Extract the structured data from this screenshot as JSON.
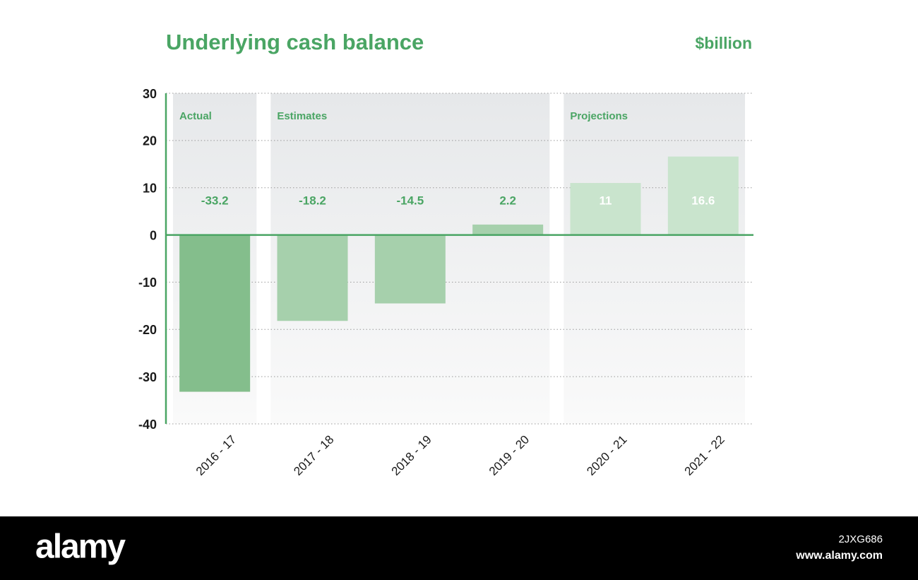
{
  "chart_data": {
    "type": "bar",
    "title": "Underlying cash balance",
    "unit": "$billion",
    "categories": [
      "2016 - 17",
      "2017 - 18",
      "2018 - 19",
      "2019 - 20",
      "2020 - 21",
      "2021 - 22"
    ],
    "values": [
      -33.2,
      -18.2,
      -14.5,
      2.2,
      11,
      16.6
    ],
    "colors": [
      "#84be8c",
      "#a6d0ac",
      "#a6d0ac",
      "#a6d0ac",
      "#c9e4cd",
      "#c9e4cd"
    ],
    "label_colors": [
      "#4aa564",
      "#4aa564",
      "#4aa564",
      "#4aa564",
      "#ffffff",
      "#ffffff"
    ],
    "groups": [
      {
        "name": "Actual",
        "categories": [
          "2016 - 17"
        ]
      },
      {
        "name": "Estimates",
        "categories": [
          "2017 - 18",
          "2018 - 19",
          "2019 - 20"
        ]
      },
      {
        "name": "Projections",
        "categories": [
          "2020 - 21",
          "2021 - 22"
        ]
      }
    ],
    "ylim": [
      -40,
      30
    ],
    "yticks": [
      30,
      20,
      10,
      0,
      -10,
      -20,
      -30,
      -40
    ],
    "grid": true
  },
  "footer": {
    "logo": "alamy",
    "image_id": "2JXG686",
    "url": "www.alamy.com"
  }
}
